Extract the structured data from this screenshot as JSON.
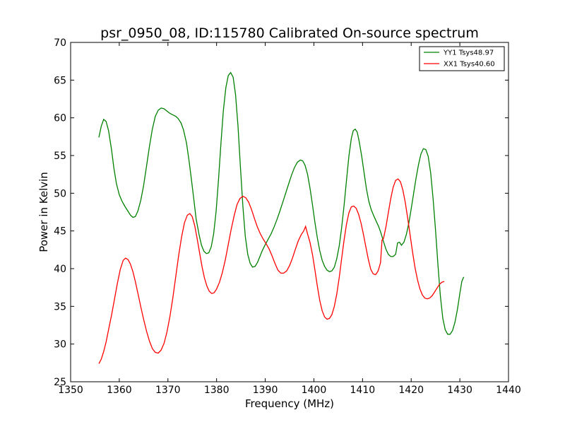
{
  "chart_data": {
    "type": "line",
    "title": "psr_0950_08, ID:115780 Calibrated On-source spectrum",
    "xlabel": "Frequency (MHz)",
    "ylabel": "Power in Kelvin",
    "xlim": [
      1350,
      1440
    ],
    "ylim": [
      25,
      70
    ],
    "xticks": [
      1350,
      1360,
      1370,
      1380,
      1390,
      1400,
      1410,
      1420,
      1430,
      1440
    ],
    "yticks": [
      25,
      30,
      35,
      40,
      45,
      50,
      55,
      60,
      65,
      70
    ],
    "legend_position": "top-right",
    "series": [
      {
        "name": "YY1 Tsys48.97",
        "color": "#008000",
        "points": [
          [
            1355.8,
            57.4
          ],
          [
            1356.3,
            58.9
          ],
          [
            1356.8,
            59.8
          ],
          [
            1357.3,
            59.5
          ],
          [
            1357.8,
            58.3
          ],
          [
            1358.4,
            55.8
          ],
          [
            1358.9,
            53.3
          ],
          [
            1359.4,
            51.3
          ],
          [
            1360,
            49.8
          ],
          [
            1360.6,
            48.9
          ],
          [
            1361.2,
            48.2
          ],
          [
            1361.8,
            47.6
          ],
          [
            1362.3,
            47.1
          ],
          [
            1362.8,
            46.8
          ],
          [
            1363.3,
            46.9
          ],
          [
            1363.8,
            47.6
          ],
          [
            1364.4,
            49
          ],
          [
            1365,
            51
          ],
          [
            1365.6,
            53.6
          ],
          [
            1366.2,
            56.2
          ],
          [
            1366.8,
            58.5
          ],
          [
            1367.4,
            60.2
          ],
          [
            1368,
            61
          ],
          [
            1368.6,
            61.3
          ],
          [
            1369.2,
            61.2
          ],
          [
            1369.8,
            60.9
          ],
          [
            1370.4,
            60.6
          ],
          [
            1371,
            60.4
          ],
          [
            1371.6,
            60.2
          ],
          [
            1372.1,
            59.9
          ],
          [
            1372.7,
            59.3
          ],
          [
            1373.2,
            58.4
          ],
          [
            1373.8,
            56.7
          ],
          [
            1374.3,
            54.5
          ],
          [
            1374.8,
            52
          ],
          [
            1375.3,
            49.3
          ],
          [
            1375.8,
            46.6
          ],
          [
            1376.4,
            44.5
          ],
          [
            1376.9,
            43.1
          ],
          [
            1377.4,
            42.3
          ],
          [
            1377.9,
            42
          ],
          [
            1378.4,
            42.1
          ],
          [
            1378.9,
            42.9
          ],
          [
            1379.4,
            44.6
          ],
          [
            1379.9,
            47.6
          ],
          [
            1380.4,
            51.8
          ],
          [
            1380.9,
            56.7
          ],
          [
            1381.4,
            61
          ],
          [
            1381.9,
            64
          ],
          [
            1382.4,
            65.6
          ],
          [
            1382.9,
            66
          ],
          [
            1383.4,
            65.4
          ],
          [
            1383.9,
            63.1
          ],
          [
            1384.4,
            58.9
          ],
          [
            1384.9,
            53.5
          ],
          [
            1385.4,
            48.3
          ],
          [
            1385.9,
            44.3
          ],
          [
            1386.4,
            41.9
          ],
          [
            1386.9,
            40.7
          ],
          [
            1387.4,
            40.2
          ],
          [
            1387.9,
            40.3
          ],
          [
            1388.4,
            40.8
          ],
          [
            1388.9,
            41.6
          ],
          [
            1389.4,
            42.4
          ],
          [
            1390,
            43.2
          ],
          [
            1390.6,
            43.9
          ],
          [
            1391.2,
            44.6
          ],
          [
            1391.8,
            45.5
          ],
          [
            1392.4,
            46.5
          ],
          [
            1393,
            47.6
          ],
          [
            1393.6,
            48.8
          ],
          [
            1394.2,
            50
          ],
          [
            1394.8,
            51.2
          ],
          [
            1395.4,
            52.4
          ],
          [
            1396,
            53.4
          ],
          [
            1396.6,
            54.1
          ],
          [
            1397.2,
            54.4
          ],
          [
            1397.7,
            54.3
          ],
          [
            1398.2,
            53.7
          ],
          [
            1398.7,
            52.5
          ],
          [
            1399.2,
            50.7
          ],
          [
            1399.7,
            48.5
          ],
          [
            1400.2,
            46.2
          ],
          [
            1400.7,
            44.1
          ],
          [
            1401.2,
            42.4
          ],
          [
            1401.7,
            41.1
          ],
          [
            1402.2,
            40.3
          ],
          [
            1402.7,
            39.8
          ],
          [
            1403.2,
            39.6
          ],
          [
            1403.7,
            39.7
          ],
          [
            1404.2,
            40.2
          ],
          [
            1404.7,
            41.3
          ],
          [
            1405.2,
            43
          ],
          [
            1405.7,
            45.4
          ],
          [
            1406.2,
            48.4
          ],
          [
            1406.7,
            51.7
          ],
          [
            1407.2,
            54.9
          ],
          [
            1407.7,
            57.3
          ],
          [
            1408.1,
            58.3
          ],
          [
            1408.5,
            58.5
          ],
          [
            1408.9,
            58.1
          ],
          [
            1409.3,
            56.9
          ],
          [
            1409.8,
            55
          ],
          [
            1410.3,
            52.8
          ],
          [
            1410.8,
            50.6
          ],
          [
            1411.3,
            48.9
          ],
          [
            1411.8,
            47.8
          ],
          [
            1412.3,
            47
          ],
          [
            1412.8,
            46.3
          ],
          [
            1413.3,
            45.6
          ],
          [
            1413.8,
            44.7
          ],
          [
            1414.3,
            43.6
          ],
          [
            1414.8,
            42.6
          ],
          [
            1415.3,
            41.9
          ],
          [
            1415.8,
            41.6
          ],
          [
            1416.3,
            41.6
          ],
          [
            1416.8,
            41.9
          ],
          [
            1417.2,
            43.4
          ],
          [
            1417.6,
            43.5
          ],
          [
            1418,
            43.1
          ],
          [
            1418.5,
            43.5
          ],
          [
            1419,
            44.5
          ],
          [
            1419.5,
            46
          ],
          [
            1420,
            47.9
          ],
          [
            1420.5,
            50
          ],
          [
            1421,
            52
          ],
          [
            1421.5,
            53.8
          ],
          [
            1422,
            55.2
          ],
          [
            1422.5,
            55.9
          ],
          [
            1423,
            55.8
          ],
          [
            1423.5,
            54.9
          ],
          [
            1424,
            52.7
          ],
          [
            1424.5,
            49.3
          ],
          [
            1425,
            45.1
          ],
          [
            1425.5,
            40.5
          ],
          [
            1426,
            36.3
          ],
          [
            1426.5,
            33.4
          ],
          [
            1427,
            31.9
          ],
          [
            1427.5,
            31.3
          ],
          [
            1428,
            31.3
          ],
          [
            1428.5,
            31.8
          ],
          [
            1429,
            32.9
          ],
          [
            1429.5,
            34.6
          ],
          [
            1430,
            36.7
          ],
          [
            1430.4,
            38.3
          ],
          [
            1430.8,
            38.9
          ]
        ]
      },
      {
        "name": "XX1 Tsys40.60",
        "color": "#ff0000",
        "points": [
          [
            1355.8,
            27.4
          ],
          [
            1356.3,
            28
          ],
          [
            1356.8,
            29
          ],
          [
            1357.3,
            30.3
          ],
          [
            1357.8,
            31.9
          ],
          [
            1358.4,
            33.8
          ],
          [
            1359,
            35.9
          ],
          [
            1359.6,
            38
          ],
          [
            1360.2,
            39.9
          ],
          [
            1360.8,
            41.1
          ],
          [
            1361.3,
            41.4
          ],
          [
            1361.8,
            41.2
          ],
          [
            1362.3,
            40.6
          ],
          [
            1362.8,
            39.6
          ],
          [
            1363.3,
            38.3
          ],
          [
            1363.8,
            36.8
          ],
          [
            1364.4,
            35
          ],
          [
            1365,
            33.3
          ],
          [
            1365.6,
            31.7
          ],
          [
            1366.2,
            30.4
          ],
          [
            1366.8,
            29.4
          ],
          [
            1367.4,
            28.9
          ],
          [
            1368,
            28.8
          ],
          [
            1368.6,
            29.2
          ],
          [
            1369.2,
            30.1
          ],
          [
            1369.8,
            31.6
          ],
          [
            1370.4,
            33.6
          ],
          [
            1371,
            36.1
          ],
          [
            1371.6,
            38.9
          ],
          [
            1372.2,
            41.7
          ],
          [
            1372.8,
            44.2
          ],
          [
            1373.4,
            46.1
          ],
          [
            1374,
            47.1
          ],
          [
            1374.5,
            47.3
          ],
          [
            1375,
            46.9
          ],
          [
            1375.5,
            45.7
          ],
          [
            1376,
            44
          ],
          [
            1376.5,
            42.1
          ],
          [
            1377,
            40.3
          ],
          [
            1377.5,
            38.8
          ],
          [
            1378,
            37.7
          ],
          [
            1378.5,
            37
          ],
          [
            1379,
            36.7
          ],
          [
            1379.5,
            36.8
          ],
          [
            1380,
            37.3
          ],
          [
            1380.6,
            38.2
          ],
          [
            1381.2,
            39.5
          ],
          [
            1381.8,
            41.2
          ],
          [
            1382.4,
            43.2
          ],
          [
            1383,
            45.2
          ],
          [
            1383.6,
            47
          ],
          [
            1384.2,
            48.5
          ],
          [
            1384.8,
            49.3
          ],
          [
            1385.4,
            49.6
          ],
          [
            1386,
            49.4
          ],
          [
            1386.6,
            48.8
          ],
          [
            1387.2,
            47.8
          ],
          [
            1387.8,
            46.6
          ],
          [
            1388.4,
            45.5
          ],
          [
            1389,
            44.6
          ],
          [
            1389.6,
            43.9
          ],
          [
            1390.2,
            43.3
          ],
          [
            1390.8,
            42.6
          ],
          [
            1391.4,
            41.7
          ],
          [
            1392,
            40.7
          ],
          [
            1392.6,
            39.8
          ],
          [
            1393.2,
            39.4
          ],
          [
            1393.8,
            39.4
          ],
          [
            1394.4,
            39.7
          ],
          [
            1395,
            40.4
          ],
          [
            1395.6,
            41.4
          ],
          [
            1396.2,
            42.6
          ],
          [
            1396.8,
            43.7
          ],
          [
            1397.4,
            44.5
          ],
          [
            1397.9,
            45
          ],
          [
            1398.3,
            45.6
          ],
          [
            1398.7,
            44.6
          ],
          [
            1399.2,
            43.5
          ],
          [
            1399.7,
            41.9
          ],
          [
            1400.2,
            39.9
          ],
          [
            1400.7,
            37.7
          ],
          [
            1401.2,
            35.8
          ],
          [
            1401.7,
            34.4
          ],
          [
            1402.2,
            33.6
          ],
          [
            1402.7,
            33.3
          ],
          [
            1403.2,
            33.4
          ],
          [
            1403.7,
            33.9
          ],
          [
            1404.2,
            35
          ],
          [
            1404.7,
            36.6
          ],
          [
            1405.2,
            38.8
          ],
          [
            1405.7,
            41.3
          ],
          [
            1406.2,
            43.8
          ],
          [
            1406.7,
            45.9
          ],
          [
            1407.2,
            47.4
          ],
          [
            1407.7,
            48.2
          ],
          [
            1408.2,
            48.3
          ],
          [
            1408.7,
            48
          ],
          [
            1409.2,
            47.2
          ],
          [
            1409.7,
            46
          ],
          [
            1410.2,
            44.5
          ],
          [
            1410.7,
            42.8
          ],
          [
            1411.2,
            41.2
          ],
          [
            1411.7,
            39.9
          ],
          [
            1412.2,
            39.3
          ],
          [
            1412.7,
            39.2
          ],
          [
            1413.2,
            39.7
          ],
          [
            1413.7,
            40.8
          ],
          [
            1414,
            43.8
          ],
          [
            1414.3,
            44
          ],
          [
            1414.8,
            45.5
          ],
          [
            1415.3,
            47.4
          ],
          [
            1415.8,
            49.3
          ],
          [
            1416.3,
            50.8
          ],
          [
            1416.8,
            51.7
          ],
          [
            1417.3,
            51.9
          ],
          [
            1417.8,
            51.5
          ],
          [
            1418.3,
            50.4
          ],
          [
            1418.8,
            48.7
          ],
          [
            1419.3,
            46.6
          ],
          [
            1419.8,
            44.4
          ],
          [
            1420.3,
            42.1
          ],
          [
            1420.8,
            40.1
          ],
          [
            1421.3,
            38.5
          ],
          [
            1421.8,
            37.3
          ],
          [
            1422.3,
            36.5
          ],
          [
            1422.8,
            36.1
          ],
          [
            1423.3,
            36
          ],
          [
            1423.8,
            36.1
          ],
          [
            1424.3,
            36.4
          ],
          [
            1424.8,
            36.9
          ],
          [
            1425.3,
            37.4
          ],
          [
            1425.8,
            37.9
          ],
          [
            1426.3,
            38.2
          ],
          [
            1426.8,
            38.3
          ]
        ]
      }
    ]
  }
}
